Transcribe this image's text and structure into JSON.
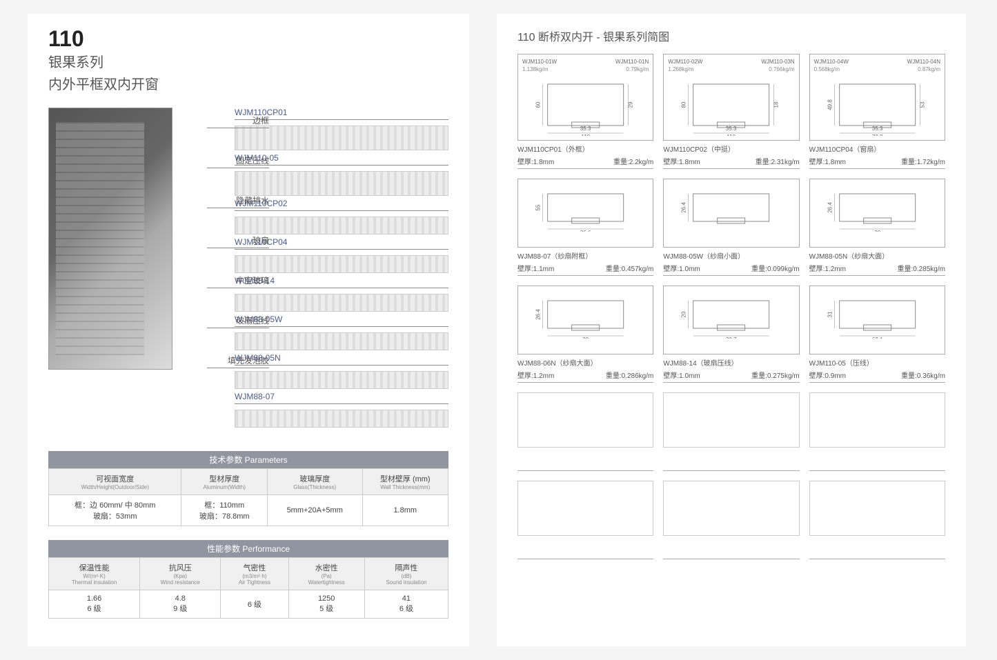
{
  "left": {
    "title_big": "110",
    "title_sub1": "银果系列",
    "title_sub2": "内外平框双内开窗",
    "callouts": [
      "边框",
      "固定压线",
      "隐藏排水",
      "玻扇",
      "中空玻璃",
      "玻扇压线",
      "填充发泡胶"
    ],
    "sections": [
      "WJM110CP01",
      "WJM110-05",
      "WJM110CP02",
      "WJM110CP04",
      "WJM88-14",
      "WJM88-05W",
      "WJM88-05N",
      "WJM88-07"
    ],
    "param_caption": "技术参数   Parameters",
    "param_headers": [
      {
        "cn": "可视面宽度",
        "en": "Width/Height(Outdoor/Side)"
      },
      {
        "cn": "型材厚度",
        "en": "Aluminum(Width)"
      },
      {
        "cn": "玻璃厚度",
        "en": "Glass(Thickness)"
      },
      {
        "cn": "型材壁厚 (mm)",
        "en": "Wall Thickness(mm)"
      }
    ],
    "param_rows": [
      [
        "框：边 60mm/ 中 80mm\n玻扇：53mm",
        "框：110mm\n玻扇：78.8mm",
        "5mm+20A+5mm",
        "1.8mm"
      ]
    ],
    "perf_caption": "性能参数   Performance",
    "perf_headers": [
      {
        "cn": "保温性能",
        "en": "W/(m²·K)\nThermal insulation"
      },
      {
        "cn": "抗风压",
        "en": "(Kpa)\nWind resistance"
      },
      {
        "cn": "气密性",
        "en": "(m3/m²·h)\nAir Tightness"
      },
      {
        "cn": "水密性",
        "en": "(Pa)\nWatertightness"
      },
      {
        "cn": "隔声性",
        "en": "(dB)\nSound insulation"
      }
    ],
    "perf_rows": [
      [
        "1.66\n6 级",
        "4.8\n9 级",
        "6 级",
        "1250\n5 级",
        "41\n6 级"
      ]
    ]
  },
  "right": {
    "title": "110 断桥双内开 - 银果系列简图",
    "wall_label": "壁厚:",
    "weight_label": "重量:",
    "row1": [
      {
        "codeL": "WJM110-01W",
        "subL": "1.138kg/m",
        "codeR": "WJM110-01N",
        "subR": "0.79kg/m",
        "dims": {
          "w": "110",
          "w2": "35.3",
          "h": "60",
          "h2": "29"
        }
      },
      {
        "codeL": "WJM110-02W",
        "subL": "1.268kg/m",
        "codeR": "WJM110-03N",
        "subR": "0.766kg/m",
        "dims": {
          "w": "110",
          "w2": "35.3",
          "h": "80",
          "h2": "18"
        }
      },
      {
        "codeL": "WJM110-04W",
        "subL": "0.568kg/m",
        "codeR": "WJM110-04N",
        "subR": "0.87kg/m",
        "dims": {
          "w": "78.8",
          "w2": "35.3",
          "h": "49.8",
          "h2": "53"
        }
      }
    ],
    "row1_meta": [
      {
        "name": "WJM110CP01（外框）",
        "wall": "1.8mm",
        "weight": "2.2kg/m"
      },
      {
        "name": "WJM110CP02（中挺）",
        "wall": "1.8mm",
        "weight": "2.31kg/m"
      },
      {
        "name": "WJM110CP04（窗扇）",
        "wall": "1.8mm",
        "weight": "1.72kg/m"
      }
    ],
    "row2": [
      {
        "dims": {
          "w": "26.6",
          "h": "55"
        }
      },
      {
        "dims": {
          "h": "26.4"
        }
      },
      {
        "dims": {
          "w": "30",
          "h": "26.4"
        }
      }
    ],
    "row2_meta": [
      {
        "name": "WJM88-07（纱扇附框）",
        "wall": "1.1mm",
        "weight": "0.457kg/m"
      },
      {
        "name": "WJM88-05W（纱扇小面）",
        "wall": "1.0mm",
        "weight": "0.099kg/m"
      },
      {
        "name": "WJM88-05N（纱扇大面）",
        "wall": "1.2mm",
        "weight": "0.285kg/m"
      }
    ],
    "row3": [
      {
        "dims": {
          "w": "30",
          "h": "26.4"
        }
      },
      {
        "dims": {
          "w": "30.7",
          "h": "20"
        }
      },
      {
        "dims": {
          "w": "62.1",
          "h": "31"
        }
      }
    ],
    "row3_meta": [
      {
        "name": "WJM88-06N（纱扇大面）",
        "wall": "1.2mm",
        "weight": "0.286kg/m"
      },
      {
        "name": "WJM88-14（玻扇压线）",
        "wall": "1.0mm",
        "weight": "0.275kg/m"
      },
      {
        "name": "WJM110-05（压线）",
        "wall": "0.9mm",
        "weight": "0.36kg/m"
      }
    ]
  }
}
